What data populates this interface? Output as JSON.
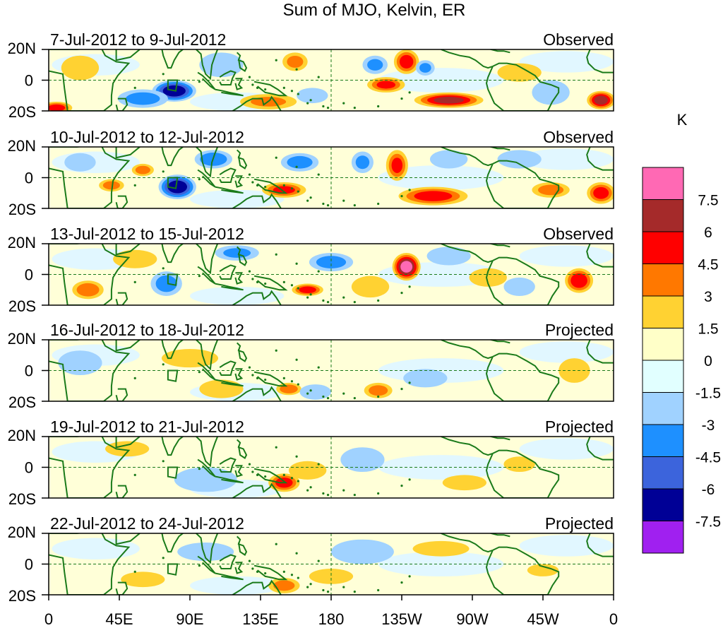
{
  "chart_data": {
    "type": "heatmap",
    "title": "Sum of MJO, Kelvin, ER",
    "units": "K",
    "x_ticks": [
      "0",
      "45E",
      "90E",
      "135E",
      "180",
      "135W",
      "90W",
      "45W",
      "0"
    ],
    "y_ticks": [
      "20N",
      "0",
      "20S"
    ],
    "lon_range": [
      0,
      360
    ],
    "lat_range": [
      -20,
      20
    ],
    "colorbar": {
      "labels": [
        "7.5",
        "6",
        "4.5",
        "3",
        "1.5",
        "0",
        "-1.5",
        "-3",
        "-4.5",
        "-6",
        "-7.5"
      ],
      "levels": [
        -7.5,
        -6,
        -4.5,
        -3,
        -1.5,
        0,
        1.5,
        3,
        4.5,
        6,
        7.5
      ],
      "colors": [
        "#a020f0",
        "#000096",
        "#3c64dc",
        "#1e90ff",
        "#a0d2ff",
        "#e1ffff",
        "#ffffc8",
        "#ffd232",
        "#ff7800",
        "#ff0000",
        "#a52a2a",
        "#ff69b4"
      ]
    },
    "panels": [
      {
        "period": "7-Jul-2012 to 9-Jul-2012",
        "status": "Observed",
        "features": [
          {
            "lon": 80,
            "lat": -7,
            "value": -7.0,
            "r_lon": 14,
            "r_lat": 7
          },
          {
            "lon": 60,
            "lat": -12,
            "value": -3.5,
            "r_lon": 16,
            "r_lat": 6
          },
          {
            "lon": 140,
            "lat": -14,
            "value": 3.0,
            "r_lon": 18,
            "r_lat": 5
          },
          {
            "lon": 157,
            "lat": 12,
            "value": 3.2,
            "r_lon": 8,
            "r_lat": 6
          },
          {
            "lon": 228,
            "lat": 12,
            "value": 5.0,
            "r_lon": 8,
            "r_lat": 8
          },
          {
            "lon": 215,
            "lat": -3,
            "value": 4.5,
            "r_lon": 12,
            "r_lat": 5
          },
          {
            "lon": 255,
            "lat": -13,
            "value": 6.0,
            "r_lon": 22,
            "r_lat": 5
          },
          {
            "lon": 352,
            "lat": -13,
            "value": 6.5,
            "r_lon": 9,
            "r_lat": 6
          },
          {
            "lon": 5,
            "lat": -18,
            "value": 5.0,
            "r_lon": 10,
            "r_lat": 4
          },
          {
            "lon": 208,
            "lat": 10,
            "value": -3.0,
            "r_lon": 8,
            "r_lat": 6
          },
          {
            "lon": 168,
            "lat": -10,
            "value": -2.5,
            "r_lon": 10,
            "r_lat": 5
          },
          {
            "lon": 240,
            "lat": 8,
            "value": -3.0,
            "r_lon": 6,
            "r_lat": 5
          },
          {
            "lon": 110,
            "lat": 10,
            "value": -2.0,
            "r_lon": 14,
            "r_lat": 8
          },
          {
            "lon": 20,
            "lat": 8,
            "value": 2.0,
            "r_lon": 12,
            "r_lat": 8
          },
          {
            "lon": 300,
            "lat": 5,
            "value": 1.8,
            "r_lon": 14,
            "r_lat": 6
          },
          {
            "lon": 320,
            "lat": -8,
            "value": -2.0,
            "r_lon": 12,
            "r_lat": 8
          }
        ]
      },
      {
        "period": "10-Jul-2012 to 12-Jul-2012",
        "status": "Observed",
        "features": [
          {
            "lon": 82,
            "lat": -6,
            "value": -7.0,
            "r_lon": 12,
            "r_lat": 8
          },
          {
            "lon": 60,
            "lat": 5,
            "value": 3.5,
            "r_lon": 7,
            "r_lat": 4
          },
          {
            "lon": 40,
            "lat": -5,
            "value": 3.5,
            "r_lon": 8,
            "r_lat": 4
          },
          {
            "lon": 105,
            "lat": 12,
            "value": -4.0,
            "r_lon": 12,
            "r_lat": 6
          },
          {
            "lon": 150,
            "lat": -8,
            "value": 4.5,
            "r_lon": 14,
            "r_lat": 5
          },
          {
            "lon": 160,
            "lat": 10,
            "value": -3.5,
            "r_lon": 12,
            "r_lat": 6
          },
          {
            "lon": 200,
            "lat": 10,
            "value": -3.0,
            "r_lon": 7,
            "r_lat": 7
          },
          {
            "lon": 222,
            "lat": 8,
            "value": 4.5,
            "r_lon": 7,
            "r_lat": 10
          },
          {
            "lon": 245,
            "lat": -12,
            "value": 5.0,
            "r_lon": 22,
            "r_lat": 6
          },
          {
            "lon": 320,
            "lat": -8,
            "value": 3.5,
            "r_lon": 12,
            "r_lat": 5
          },
          {
            "lon": 352,
            "lat": -10,
            "value": 5.0,
            "r_lon": 9,
            "r_lat": 7
          },
          {
            "lon": 20,
            "lat": 10,
            "value": -2.5,
            "r_lon": 10,
            "r_lat": 6
          },
          {
            "lon": 300,
            "lat": 12,
            "value": -2.0,
            "r_lon": 14,
            "r_lat": 6
          },
          {
            "lon": 255,
            "lat": 12,
            "value": -2.0,
            "r_lon": 12,
            "r_lat": 6
          }
        ]
      },
      {
        "period": "13-Jul-2012 to 15-Jul-2012",
        "status": "Observed",
        "features": [
          {
            "lon": 228,
            "lat": 5,
            "value": 7.8,
            "r_lon": 9,
            "r_lat": 9
          },
          {
            "lon": 338,
            "lat": -4,
            "value": 5.5,
            "r_lon": 9,
            "r_lat": 8
          },
          {
            "lon": 165,
            "lat": -10,
            "value": 5.0,
            "r_lon": 10,
            "r_lat": 4
          },
          {
            "lon": 25,
            "lat": -10,
            "value": 4.0,
            "r_lon": 10,
            "r_lat": 6
          },
          {
            "lon": 75,
            "lat": -6,
            "value": -3.5,
            "r_lon": 10,
            "r_lat": 8
          },
          {
            "lon": 120,
            "lat": 14,
            "value": -3.0,
            "r_lon": 14,
            "r_lat": 5
          },
          {
            "lon": 180,
            "lat": 8,
            "value": -3.5,
            "r_lon": 14,
            "r_lat": 6
          },
          {
            "lon": 205,
            "lat": -8,
            "value": 2.5,
            "r_lon": 12,
            "r_lat": 7
          },
          {
            "lon": 280,
            "lat": -2,
            "value": 2.0,
            "r_lon": 12,
            "r_lat": 6
          },
          {
            "lon": 55,
            "lat": 10,
            "value": 2.0,
            "r_lon": 14,
            "r_lat": 6
          },
          {
            "lon": 300,
            "lat": -8,
            "value": -2.0,
            "r_lon": 10,
            "r_lat": 6
          },
          {
            "lon": 255,
            "lat": 12,
            "value": -2.0,
            "r_lon": 14,
            "r_lat": 6
          }
        ]
      },
      {
        "period": "16-Jul-2012 to 18-Jul-2012",
        "status": "Projected",
        "features": [
          {
            "lon": 153,
            "lat": -12,
            "value": 4.0,
            "r_lon": 8,
            "r_lat": 4
          },
          {
            "lon": 210,
            "lat": -13,
            "value": 3.5,
            "r_lon": 9,
            "r_lat": 5
          },
          {
            "lon": 335,
            "lat": 0,
            "value": 2.5,
            "r_lon": 10,
            "r_lat": 8
          },
          {
            "lon": 20,
            "lat": 5,
            "value": -1.8,
            "r_lon": 14,
            "r_lat": 8
          },
          {
            "lon": 90,
            "lat": 8,
            "value": 1.5,
            "r_lon": 18,
            "r_lat": 6
          },
          {
            "lon": 170,
            "lat": -14,
            "value": -2.5,
            "r_lon": 10,
            "r_lat": 5
          },
          {
            "lon": 240,
            "lat": -5,
            "value": -1.8,
            "r_lon": 14,
            "r_lat": 6
          },
          {
            "lon": 110,
            "lat": -12,
            "value": 1.6,
            "r_lon": 14,
            "r_lat": 6
          }
        ]
      },
      {
        "period": "19-Jul-2012 to 21-Jul-2012",
        "status": "Projected",
        "features": [
          {
            "lon": 150,
            "lat": -10,
            "value": 5.0,
            "r_lon": 10,
            "r_lat": 6
          },
          {
            "lon": 165,
            "lat": -2,
            "value": 2.5,
            "r_lon": 12,
            "r_lat": 6
          },
          {
            "lon": 200,
            "lat": 5,
            "value": -1.8,
            "r_lon": 14,
            "r_lat": 8
          },
          {
            "lon": 265,
            "lat": -10,
            "value": 2.0,
            "r_lon": 14,
            "r_lat": 5
          },
          {
            "lon": 300,
            "lat": 2,
            "value": 1.8,
            "r_lon": 10,
            "r_lat": 5
          },
          {
            "lon": 50,
            "lat": 12,
            "value": 1.6,
            "r_lon": 14,
            "r_lat": 5
          },
          {
            "lon": 100,
            "lat": -8,
            "value": -1.6,
            "r_lon": 20,
            "r_lat": 8
          }
        ]
      },
      {
        "period": "22-Jul-2012 to 24-Jul-2012",
        "status": "Projected",
        "features": [
          {
            "lon": 150,
            "lat": -14,
            "value": 3.5,
            "r_lon": 10,
            "r_lat": 5
          },
          {
            "lon": 180,
            "lat": -8,
            "value": 2.0,
            "r_lon": 14,
            "r_lat": 5
          },
          {
            "lon": 60,
            "lat": -10,
            "value": 2.0,
            "r_lon": 14,
            "r_lat": 5
          },
          {
            "lon": 250,
            "lat": 10,
            "value": 1.8,
            "r_lon": 18,
            "r_lat": 5
          },
          {
            "lon": 315,
            "lat": -4,
            "value": 1.8,
            "r_lon": 10,
            "r_lat": 4
          },
          {
            "lon": 200,
            "lat": 8,
            "value": -1.6,
            "r_lon": 20,
            "r_lat": 8
          },
          {
            "lon": 100,
            "lat": 8,
            "value": -1.6,
            "r_lon": 18,
            "r_lat": 6
          }
        ]
      }
    ]
  }
}
